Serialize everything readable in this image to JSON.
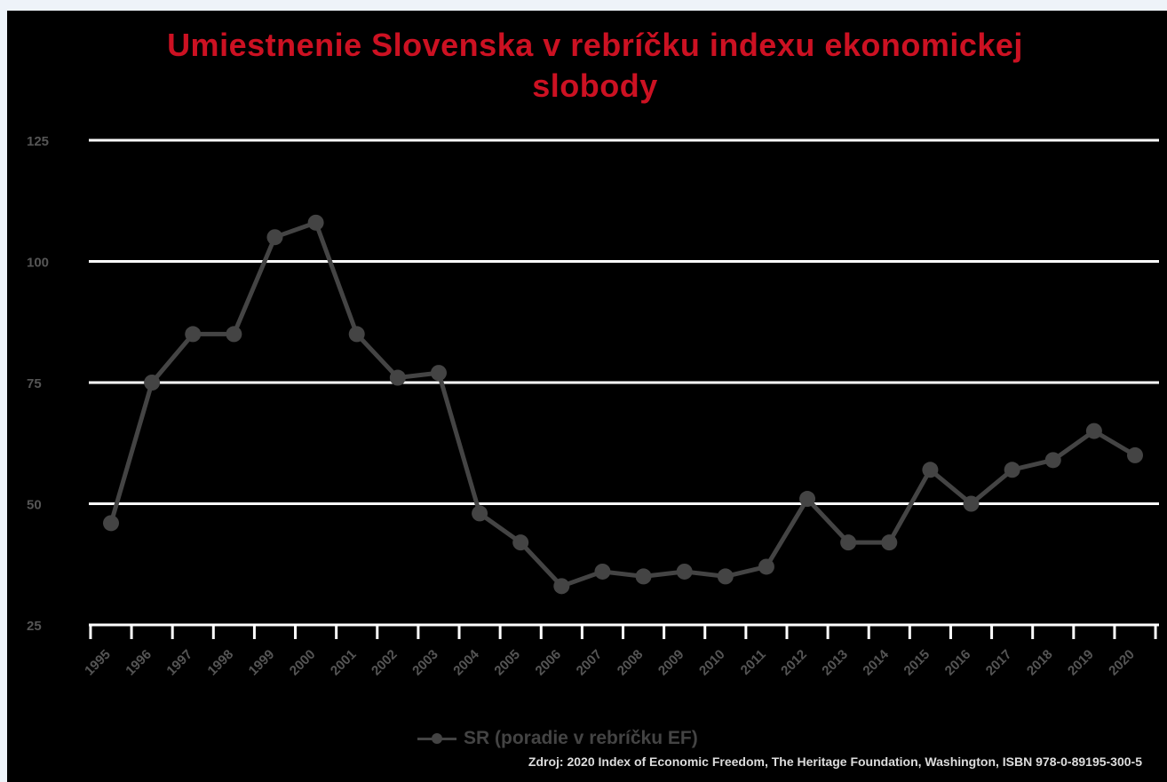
{
  "chart_data": {
    "type": "line",
    "title": "Umiestnenie Slovenska v rebríčku indexu ekonomickej slobody",
    "xlabel": "",
    "ylabel": "",
    "categories": [
      "1995",
      "1996",
      "1997",
      "1998",
      "1999",
      "2000",
      "2001",
      "2002",
      "2003",
      "2004",
      "2005",
      "2006",
      "2007",
      "2008",
      "2009",
      "2010",
      "2011",
      "2012",
      "2013",
      "2014",
      "2015",
      "2016",
      "2017",
      "2018",
      "2019",
      "2020"
    ],
    "series": [
      {
        "name": "SR (poradie v rebríčku EF)",
        "values": [
          46,
          75,
          85,
          85,
          105,
          108,
          85,
          76,
          77,
          48,
          42,
          33,
          36,
          35,
          36,
          35,
          37,
          51,
          42,
          42,
          57,
          50,
          57,
          59,
          65,
          60
        ]
      }
    ],
    "ylim": [
      25,
      125
    ],
    "y_ticks": [
      "125",
      "100",
      "75",
      "50",
      "25"
    ],
    "grid": true,
    "legend_position": "bottom",
    "colors": {
      "background": "#000000",
      "title": "#cc1122",
      "series": "#444444",
      "grid": "#ffffff",
      "ticks": "#555555"
    }
  },
  "source_note": "Zdroj: 2020 Index of Economic Freedom, The Heritage Foundation, Washington, ISBN 978-0-89195-300-5"
}
